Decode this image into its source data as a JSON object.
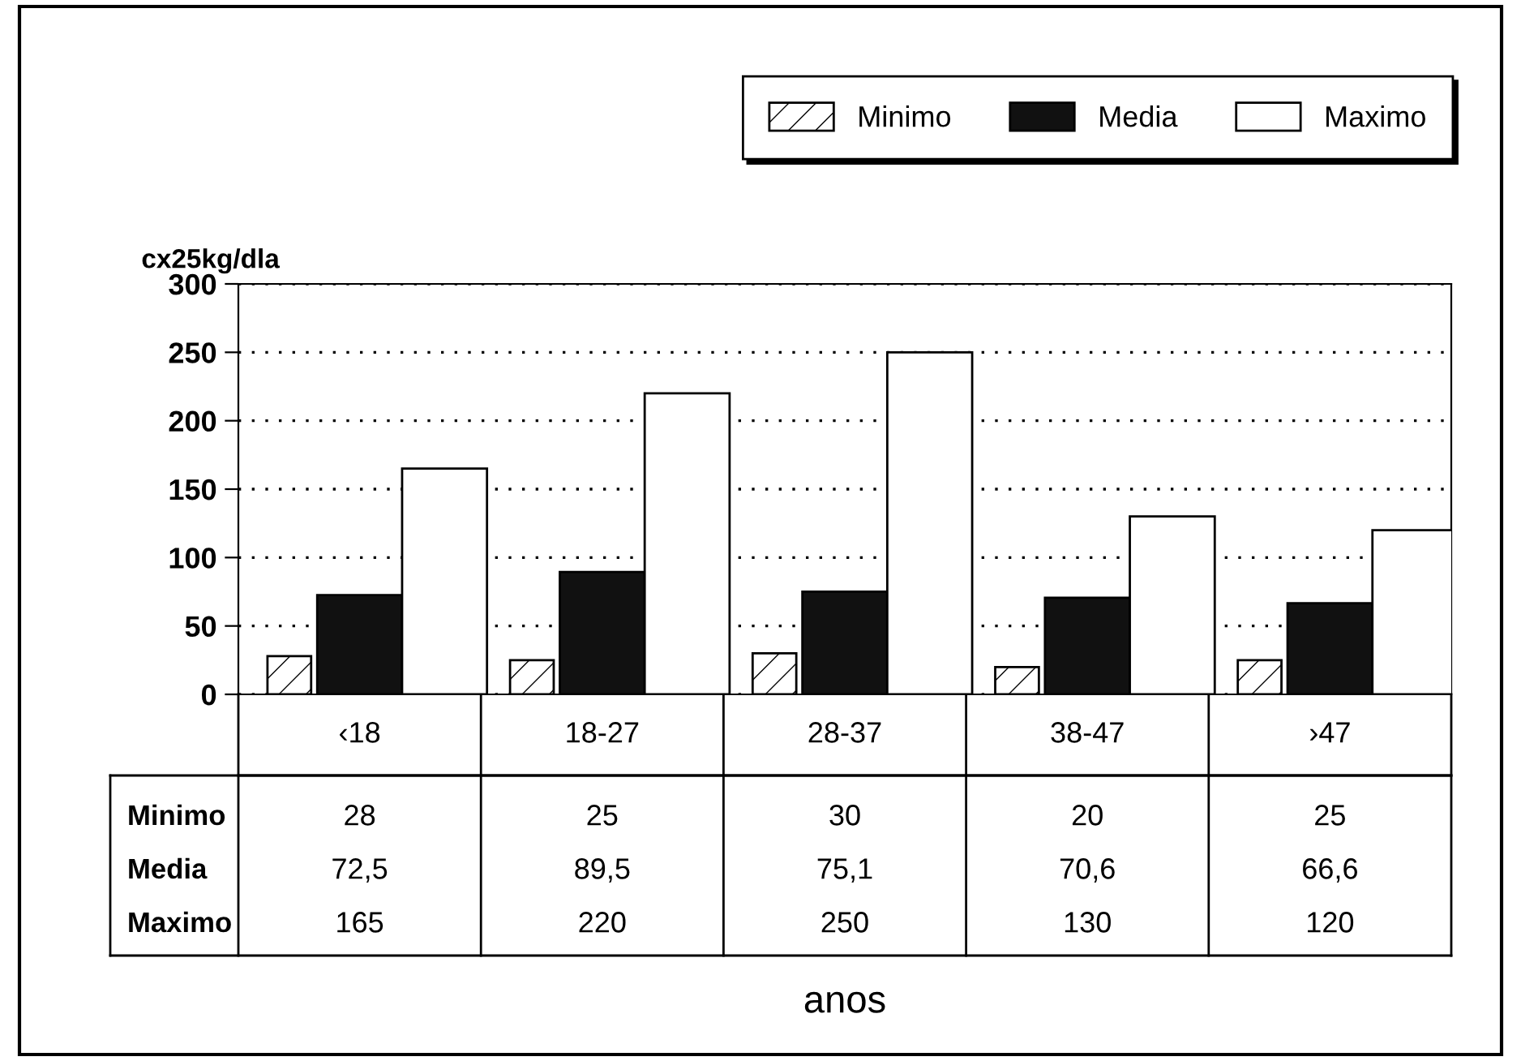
{
  "chart_data": {
    "type": "bar",
    "ylabel": "cx25kg/dla",
    "annotations": [
      "anos"
    ],
    "categories": [
      "‹18",
      "18-27",
      "28-37",
      "38-47",
      "›47"
    ],
    "series": [
      {
        "name": "Minimo",
        "color": "#ffffff",
        "values": [
          28,
          25,
          30,
          20,
          25
        ],
        "value_labels": [
          "28",
          "25",
          "30",
          "20",
          "25"
        ]
      },
      {
        "name": "Media",
        "color": "#111111",
        "values": [
          72.5,
          89.5,
          75.1,
          70.6,
          66.6
        ],
        "value_labels": [
          "72,5",
          "89,5",
          "75,1",
          "70,6",
          "66,6"
        ]
      },
      {
        "name": "Maximo",
        "color": "#ffffff",
        "values": [
          165,
          220,
          250,
          130,
          120
        ],
        "value_labels": [
          "165",
          "220",
          "250",
          "130",
          "120"
        ]
      }
    ],
    "ylim": [
      0,
      300
    ],
    "yticks": [
      0,
      50,
      100,
      150,
      200,
      250,
      300
    ],
    "grid": "y",
    "legend": "top right"
  }
}
